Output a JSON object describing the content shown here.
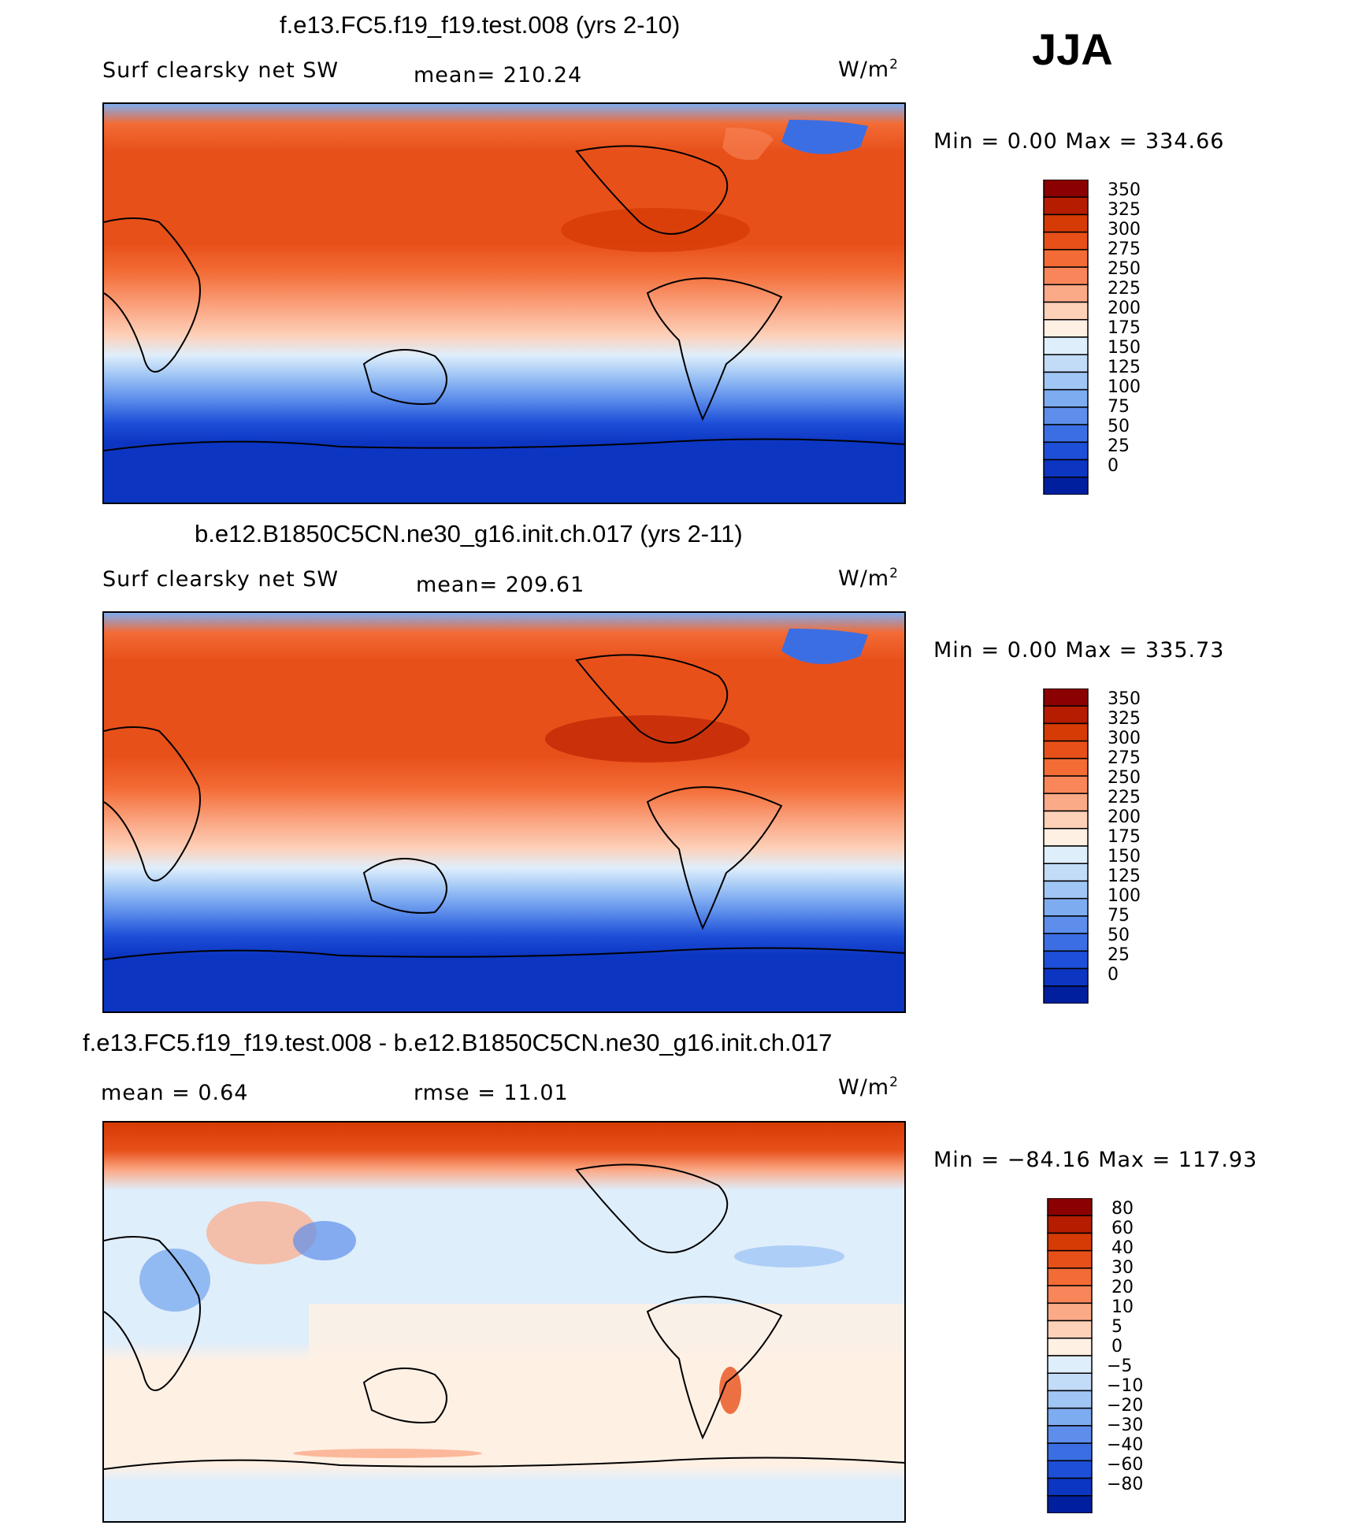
{
  "season": "JJA",
  "panels": [
    {
      "id": "p1",
      "title": "f.e13.FC5.f19_f19.test.008 (yrs 2-10)",
      "var_label": "Surf clearsky net SW",
      "stat1": "mean= 210.24",
      "stat2": "",
      "units_base": "W/m",
      "units_exp": "2",
      "minmax_label": "Min =     0.00  Max  =  334.66",
      "colorbar": {
        "labels": [
          "350",
          "325",
          "300",
          "275",
          "250",
          "225",
          "200",
          "175",
          "150",
          "125",
          "100",
          "75",
          "50",
          "25",
          "0"
        ],
        "colors": [
          "#8b0000",
          "#b51c00",
          "#d63a05",
          "#e8501a",
          "#f36b35",
          "#f8865a",
          "#fbaa88",
          "#fdd0b8",
          "#fff0e4",
          "#dfeefb",
          "#c2dcf8",
          "#a0c6f5",
          "#7eacf0",
          "#5d8eeb",
          "#3b6ee3",
          "#1e4fd8",
          "#0c35c2",
          "#001f9e"
        ]
      }
    },
    {
      "id": "p2",
      "title": "b.e12.B1850C5CN.ne30_g16.init.ch.017 (yrs 2-11)",
      "var_label": "Surf clearsky net SW",
      "stat1": "mean= 209.61",
      "stat2": "",
      "units_base": "W/m",
      "units_exp": "2",
      "minmax_label": "Min =     0.00  Max  =  335.73",
      "colorbar": {
        "labels": [
          "350",
          "325",
          "300",
          "275",
          "250",
          "225",
          "200",
          "175",
          "150",
          "125",
          "100",
          "75",
          "50",
          "25",
          "0"
        ],
        "colors": [
          "#8b0000",
          "#b51c00",
          "#d63a05",
          "#e8501a",
          "#f36b35",
          "#f8865a",
          "#fbaa88",
          "#fdd0b8",
          "#fff0e4",
          "#dfeefb",
          "#c2dcf8",
          "#a0c6f5",
          "#7eacf0",
          "#5d8eeb",
          "#3b6ee3",
          "#1e4fd8",
          "#0c35c2",
          "#001f9e"
        ]
      }
    },
    {
      "id": "p3",
      "title": "f.e13.FC5.f19_f19.test.008 - b.e12.B1850C5CN.ne30_g16.init.ch.017",
      "var_label": "mean =     0.64",
      "stat1": "rmse =    11.01",
      "stat2": "",
      "units_base": "W/m",
      "units_exp": "2",
      "minmax_label": "Min  =  −84.16  Max  =  117.93",
      "colorbar": {
        "labels": [
          "80",
          "60",
          "40",
          "30",
          "20",
          "10",
          "5",
          "0",
          "−5",
          "−10",
          "−20",
          "−30",
          "−40",
          "−60",
          "−80"
        ],
        "colors": [
          "#8b0000",
          "#b51c00",
          "#d63a05",
          "#e8501a",
          "#f36b35",
          "#f8865a",
          "#fbaa88",
          "#fdd0b8",
          "#fff0e4",
          "#dfeefb",
          "#c2dcf8",
          "#a0c6f5",
          "#7eacf0",
          "#5d8eeb",
          "#3b6ee3",
          "#1e4fd8",
          "#0c35c2",
          "#001f9e"
        ]
      }
    }
  ],
  "chart_data": [
    {
      "type": "heatmap",
      "title": "f.e13.FC5.f19_f19.test.008 (yrs 2-10)",
      "field": "Surf clearsky net SW",
      "season": "JJA",
      "units": "W/m2",
      "mean": 210.24,
      "min": 0.0,
      "max": 334.66,
      "contour_levels": [
        0,
        25,
        50,
        75,
        100,
        125,
        150,
        175,
        200,
        225,
        250,
        275,
        300,
        325,
        350
      ]
    },
    {
      "type": "heatmap",
      "title": "b.e12.B1850C5CN.ne30_g16.init.ch.017 (yrs 2-11)",
      "field": "Surf clearsky net SW",
      "season": "JJA",
      "units": "W/m2",
      "mean": 209.61,
      "min": 0.0,
      "max": 335.73,
      "contour_levels": [
        0,
        25,
        50,
        75,
        100,
        125,
        150,
        175,
        200,
        225,
        250,
        275,
        300,
        325,
        350
      ]
    },
    {
      "type": "heatmap",
      "title": "f.e13.FC5.f19_f19.test.008 - b.e12.B1850C5CN.ne30_g16.init.ch.017",
      "season": "JJA",
      "units": "W/m2",
      "mean": 0.64,
      "rmse": 11.01,
      "min": -84.16,
      "max": 117.93,
      "contour_levels": [
        -80,
        -60,
        -40,
        -30,
        -20,
        -10,
        -5,
        0,
        5,
        10,
        20,
        30,
        40,
        60,
        80
      ]
    }
  ]
}
